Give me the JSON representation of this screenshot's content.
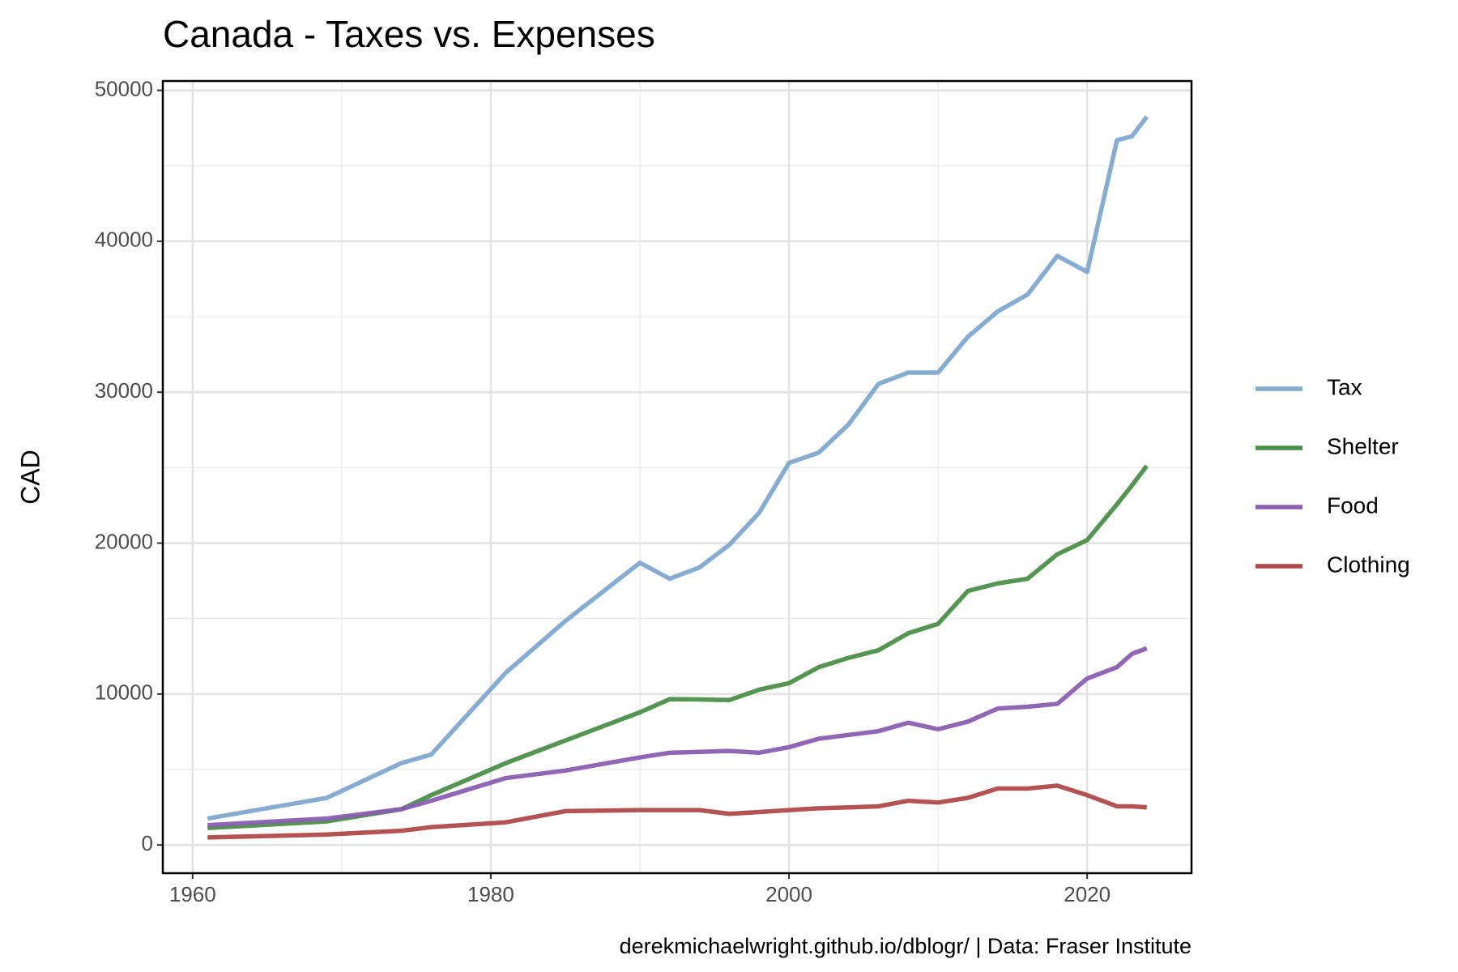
{
  "chart_data": {
    "type": "line",
    "title": "Canada - Taxes vs. Expenses",
    "y_label": "CAD",
    "caption": "derekmichaelwright.github.io/dblogr/ | Data: Fraser Institute",
    "x": [
      1961,
      1969,
      1974,
      1976,
      1981,
      1985,
      1990,
      1992,
      1994,
      1996,
      1998,
      2000,
      2002,
      2004,
      2006,
      2008,
      2010,
      2012,
      2014,
      2016,
      2018,
      2020,
      2022,
      2023,
      2024
    ],
    "series": [
      {
        "name": "Tax",
        "color": "#80a9cf",
        "values": [
          1750,
          3120,
          5420,
          5990,
          11410,
          14840,
          18700,
          17640,
          18390,
          19890,
          22010,
          25310,
          26000,
          27870,
          30550,
          31300,
          31300,
          33670,
          35350,
          36470,
          39030,
          37970,
          46700,
          46950,
          48250
        ]
      },
      {
        "name": "Shelter",
        "color": "#4a8f48",
        "values": [
          1120,
          1560,
          2370,
          3300,
          5420,
          6920,
          8790,
          9660,
          9640,
          9600,
          10290,
          10720,
          11780,
          12400,
          12900,
          14030,
          14650,
          16830,
          17330,
          17640,
          19260,
          20200,
          22570,
          23820,
          25120
        ]
      },
      {
        "name": "Food",
        "color": "#8a5fb0",
        "values": [
          1310,
          1750,
          2370,
          2930,
          4430,
          4930,
          5800,
          6110,
          6170,
          6230,
          6110,
          6480,
          7040,
          7290,
          7540,
          8100,
          7670,
          8170,
          9040,
          9160,
          9350,
          11030,
          11780,
          12660,
          13030
        ]
      },
      {
        "name": "Clothing",
        "color": "#b04a4a",
        "values": [
          500,
          690,
          940,
          1180,
          1500,
          2240,
          2310,
          2310,
          2310,
          2060,
          2180,
          2310,
          2430,
          2490,
          2560,
          2930,
          2810,
          3120,
          3740,
          3740,
          3930,
          3300,
          2560,
          2560,
          2490
        ]
      }
    ],
    "xlim": [
      1958,
      2027
    ],
    "xticks": [
      1960,
      1980,
      2000,
      2020
    ],
    "minor_xticks": [
      1970,
      1990,
      2010
    ],
    "ylim": [
      -1870,
      50620
    ],
    "yticks": [
      0,
      10000,
      20000,
      30000,
      40000,
      50000
    ],
    "minor_yticks": [
      5000,
      15000,
      25000,
      35000,
      45000
    ],
    "grid": true,
    "legend": "right"
  }
}
